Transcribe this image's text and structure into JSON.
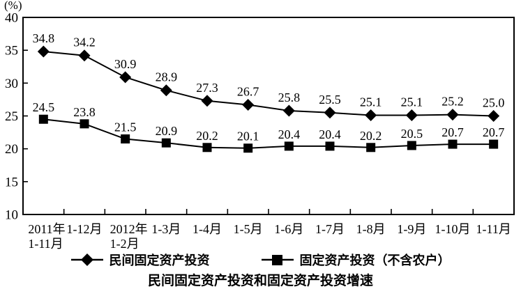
{
  "chart_data": {
    "type": "line",
    "title": "民间固定资产投资和固定资产投资增速",
    "ylabel": "(%)",
    "ylim": [
      10,
      40
    ],
    "yticks": [
      10,
      15,
      20,
      25,
      30,
      35,
      40
    ],
    "grid": false,
    "legend_position": "bottom",
    "line_color": "#000000",
    "background_color": "#ffffff",
    "categories": [
      [
        "2011年",
        "1-11月"
      ],
      [
        "1-12月"
      ],
      [
        "2012年",
        "1-2月"
      ],
      [
        "1-3月"
      ],
      [
        "1-4月"
      ],
      [
        "1-5月"
      ],
      [
        "1-6月"
      ],
      [
        "1-7月"
      ],
      [
        "1-8月"
      ],
      [
        "1-9月"
      ],
      [
        "1-10月"
      ],
      [
        "1-11月"
      ]
    ],
    "series": [
      {
        "name": "民间固定资产投资",
        "marker": "diamond",
        "values": [
          34.8,
          34.2,
          30.9,
          28.9,
          27.3,
          26.7,
          25.8,
          25.5,
          25.1,
          25.1,
          25.2,
          25.0
        ]
      },
      {
        "name": "固定资产投资（不含农户）",
        "marker": "square",
        "values": [
          24.5,
          23.8,
          21.5,
          20.9,
          20.2,
          20.1,
          20.4,
          20.4,
          20.2,
          20.5,
          20.7,
          20.7
        ]
      }
    ]
  }
}
